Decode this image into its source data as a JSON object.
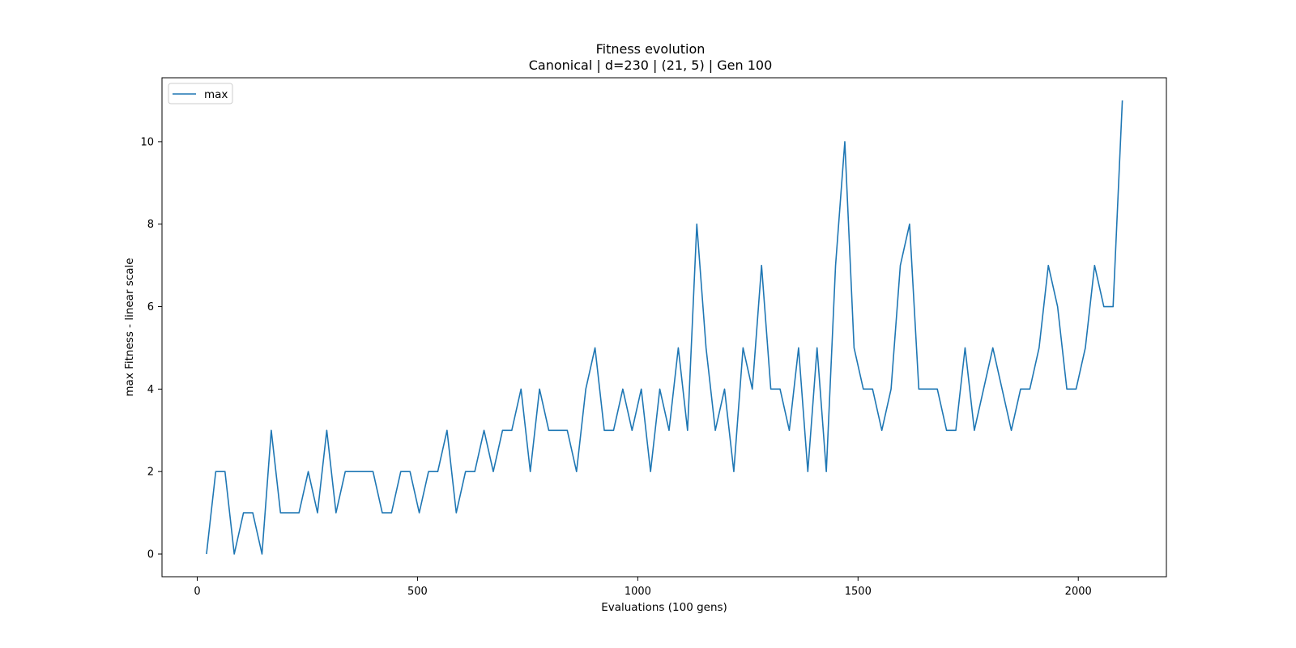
{
  "chart_data": {
    "type": "line",
    "title": "Fitness evolution",
    "subtitle": "Canonical | d=230 | (21, 5) | Gen 100",
    "xlabel": "Evaluations (100 gens)",
    "ylabel": "max Fitness - linear scale",
    "xlim": [
      -80,
      2200
    ],
    "ylim": [
      -0.55,
      11.55
    ],
    "xticks": [
      0,
      500,
      1000,
      1500,
      2000
    ],
    "xtick_labels": [
      "0",
      "500",
      "1000",
      "1500",
      "2000"
    ],
    "yticks": [
      0,
      2,
      4,
      6,
      8,
      10
    ],
    "ytick_labels": [
      "0",
      "2",
      "4",
      "6",
      "8",
      "10"
    ],
    "grid": false,
    "legend_position": "top-left",
    "series": [
      {
        "name": "max",
        "color": "#1f77b4",
        "x": [
          21,
          42,
          63,
          84,
          105,
          126,
          147,
          168,
          189,
          210,
          231,
          252,
          273,
          294,
          315,
          336,
          357,
          378,
          399,
          420,
          441,
          462,
          483,
          504,
          525,
          546,
          567,
          588,
          609,
          630,
          651,
          672,
          693,
          714,
          735,
          756,
          777,
          798,
          819,
          840,
          861,
          882,
          903,
          924,
          945,
          966,
          987,
          1008,
          1029,
          1050,
          1071,
          1092,
          1113,
          1134,
          1155,
          1176,
          1197,
          1218,
          1239,
          1260,
          1281,
          1302,
          1323,
          1344,
          1365,
          1386,
          1407,
          1428,
          1449,
          1470,
          1491,
          1512,
          1533,
          1554,
          1575,
          1596,
          1617,
          1638,
          1659,
          1680,
          1701,
          1722,
          1743,
          1764,
          1785,
          1806,
          1827,
          1848,
          1869,
          1890,
          1911,
          1932,
          1953,
          1974,
          1995,
          2016,
          2037,
          2058,
          2079,
          2100
        ],
        "y": [
          0,
          2,
          2,
          0,
          1,
          1,
          0,
          3,
          1,
          1,
          1,
          2,
          1,
          3,
          1,
          2,
          2,
          2,
          2,
          1,
          1,
          2,
          2,
          1,
          2,
          2,
          3,
          1,
          2,
          2,
          3,
          2,
          3,
          3,
          4,
          2,
          4,
          3,
          3,
          3,
          2,
          4,
          5,
          3,
          3,
          4,
          3,
          4,
          2,
          4,
          3,
          5,
          3,
          8,
          5,
          3,
          4,
          2,
          5,
          4,
          7,
          4,
          4,
          3,
          5,
          2,
          5,
          2,
          7,
          10,
          5,
          4,
          4,
          3,
          4,
          7,
          8,
          4,
          4,
          4,
          3,
          3,
          5,
          3,
          4,
          5,
          4,
          3,
          4,
          4,
          5,
          7,
          6,
          4,
          4,
          5,
          7,
          6,
          6,
          11
        ]
      }
    ]
  }
}
